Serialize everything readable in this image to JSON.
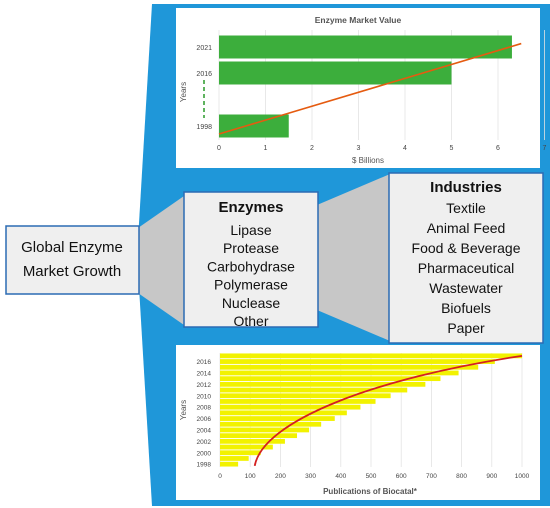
{
  "left_box": {
    "line1": "Global Enzyme",
    "line2": "Market Growth"
  },
  "enzymes": {
    "title": "Enzymes",
    "items": [
      "Lipase",
      "Protease",
      "Carbohydrase",
      "Polymerase",
      "Nuclease",
      "Other"
    ]
  },
  "industries": {
    "title": "Industries",
    "items": [
      "Textile",
      "Animal Feed",
      "Food & Beverage",
      "Pharmaceutical",
      "Wastewater",
      "Biofuels",
      "Paper"
    ]
  },
  "colors": {
    "background_shape": "#1f97d9",
    "box_fill": "#efefef",
    "box_border": "#2b6bb4",
    "connector_fill": "#c7c7c7",
    "market_bar": "#3cae3c",
    "publication_bar": "#f2f200",
    "trend_line_market": "#e55b10",
    "trend_line_publications": "#d42020",
    "dashed_marker": "#2a9a2a"
  },
  "chart_data": [
    {
      "type": "bar",
      "orientation": "horizontal",
      "title": "Enzyme Market Value",
      "xlabel": "$ Billions",
      "ylabel": "Years",
      "categories": [
        "1998",
        "2016",
        "2021"
      ],
      "values": [
        1.5,
        5.0,
        6.3
      ],
      "xlim": [
        0,
        7
      ],
      "xticks": [
        "0",
        "1",
        "2",
        "3",
        "4",
        "5",
        "6",
        "7"
      ],
      "trendline": [
        [
          0.0,
          1998
        ],
        [
          6.5,
          2022
        ]
      ],
      "grid": true
    },
    {
      "type": "bar",
      "orientation": "horizontal",
      "title": "",
      "xlabel": "Publications of Biocatal*",
      "ylabel": "Years",
      "categories": [
        "1998",
        "1999",
        "2000",
        "2001",
        "2002",
        "2003",
        "2004",
        "2005",
        "2006",
        "2007",
        "2008",
        "2009",
        "2010",
        "2011",
        "2012",
        "2013",
        "2014",
        "2015",
        "2016",
        "2017"
      ],
      "values": [
        60,
        95,
        135,
        175,
        215,
        255,
        295,
        335,
        380,
        420,
        465,
        515,
        565,
        620,
        680,
        730,
        790,
        855,
        910,
        1000
      ],
      "ytick_labels": [
        "1998",
        "2000",
        "2002",
        "2004",
        "2006",
        "2008",
        "2010",
        "2012",
        "2014",
        "2016"
      ],
      "xlim": [
        0,
        1000
      ],
      "xticks": [
        "0",
        "100",
        "200",
        "300",
        "400",
        "500",
        "600",
        "700",
        "800",
        "900",
        "1000"
      ],
      "trendline": [
        [
          115,
          1998
        ],
        [
          1000,
          2017
        ]
      ],
      "grid": true
    }
  ]
}
